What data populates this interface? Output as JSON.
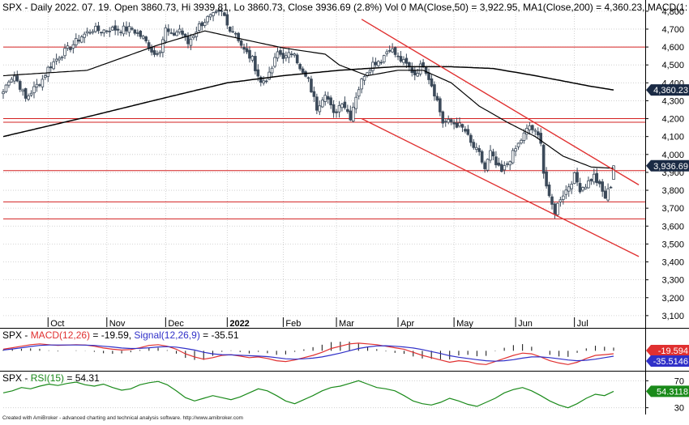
{
  "header": {
    "symbol": "SPX",
    "title": "SPX - Daily 2022. 07. 19. Open 3860.73, Hi 3939.81, Lo 3860.73, Close 3936.69 (2.8%) Vol 0 MA(Close,50) = 3,922.95, MA1(Close,200) = 4,360.23, MACD(1:"
  },
  "footer": "Created with AmiBroker - advanced charting and technical analysis software. http://www.amibroker.com",
  "colors": {
    "grid": "#c8c8c8",
    "candle": "#3c4a5a",
    "hline": "#d32020",
    "channel": "#e03030",
    "ma": "#000000",
    "macd": "#e03030",
    "signal": "#3030c8",
    "rsi": "#1a8a1a",
    "label_blue": "#1a2a44"
  },
  "chart_data": [
    {
      "type": "candlestick",
      "panel": "price",
      "title": "SPX - Daily 2022. 07. 19.",
      "ylim": [
        3050,
        4860
      ],
      "y_ticks": [
        3100,
        3200,
        3300,
        3400,
        3500,
        3600,
        3700,
        3800,
        3900,
        4000,
        4100,
        4200,
        4300,
        4400,
        4500,
        4600,
        4700,
        4800
      ],
      "y_tick_labels": [
        "3,100",
        "3,200",
        "3,300",
        "3,400",
        "3,500",
        "3,600",
        "3,700",
        "3,800",
        "3,900",
        "4,000",
        "4,100",
        "4,200",
        "4,300",
        "4,400",
        "4,500",
        "4,600",
        "4,700",
        "4,800"
      ],
      "x_labels": [
        {
          "label": "Oct",
          "bar": 16
        },
        {
          "label": "Nov",
          "bar": 37
        },
        {
          "label": "Dec",
          "bar": 58
        },
        {
          "label": "2022",
          "bar": 80
        },
        {
          "label": "Feb",
          "bar": 100
        },
        {
          "label": "Mar",
          "bar": 119
        },
        {
          "label": "Apr",
          "bar": 141
        },
        {
          "label": "May",
          "bar": 161
        },
        {
          "label": "Jun",
          "bar": 183
        },
        {
          "label": "Jul",
          "bar": 204
        }
      ],
      "bar_count": 219,
      "anchors": [
        [
          0,
          4350
        ],
        [
          2,
          4420
        ],
        [
          4,
          4440
        ],
        [
          6,
          4380
        ],
        [
          8,
          4310
        ],
        [
          10,
          4350
        ],
        [
          14,
          4420
        ],
        [
          16,
          4480
        ],
        [
          20,
          4550
        ],
        [
          24,
          4600
        ],
        [
          28,
          4660
        ],
        [
          32,
          4700
        ],
        [
          35,
          4690
        ],
        [
          38,
          4700
        ],
        [
          42,
          4700
        ],
        [
          46,
          4700
        ],
        [
          50,
          4650
        ],
        [
          54,
          4560
        ],
        [
          56,
          4590
        ],
        [
          58,
          4700
        ],
        [
          60,
          4660
        ],
        [
          63,
          4700
        ],
        [
          66,
          4620
        ],
        [
          70,
          4720
        ],
        [
          73,
          4760
        ],
        [
          76,
          4780
        ],
        [
          78,
          4790
        ],
        [
          79,
          4770
        ],
        [
          80,
          4720
        ],
        [
          83,
          4680
        ],
        [
          86,
          4580
        ],
        [
          89,
          4530
        ],
        [
          92,
          4400
        ],
        [
          95,
          4440
        ],
        [
          98,
          4570
        ],
        [
          101,
          4540
        ],
        [
          104,
          4580
        ],
        [
          106,
          4470
        ],
        [
          109,
          4410
        ],
        [
          112,
          4260
        ],
        [
          115,
          4350
        ],
        [
          118,
          4220
        ],
        [
          121,
          4300
        ],
        [
          124,
          4210
        ],
        [
          126,
          4330
        ],
        [
          129,
          4450
        ],
        [
          132,
          4510
        ],
        [
          135,
          4530
        ],
        [
          138,
          4600
        ],
        [
          141,
          4540
        ],
        [
          144,
          4500
        ],
        [
          147,
          4450
        ],
        [
          150,
          4510
        ],
        [
          153,
          4390
        ],
        [
          155,
          4300
        ],
        [
          157,
          4180
        ],
        [
          160,
          4180
        ],
        [
          163,
          4160
        ],
        [
          165,
          4130
        ],
        [
          167,
          4060
        ],
        [
          170,
          4000
        ],
        [
          172,
          3920
        ],
        [
          174,
          4010
        ],
        [
          176,
          3940
        ],
        [
          178,
          3900
        ],
        [
          180,
          3950
        ],
        [
          183,
          4030
        ],
        [
          186,
          4110
        ],
        [
          188,
          4160
        ],
        [
          190,
          4120
        ],
        [
          192,
          4080
        ],
        [
          193,
          3900
        ],
        [
          195,
          3750
        ],
        [
          197,
          3680
        ],
        [
          199,
          3760
        ],
        [
          201,
          3800
        ],
        [
          204,
          3880
        ],
        [
          206,
          3810
        ],
        [
          208,
          3830
        ],
        [
          211,
          3880
        ],
        [
          213,
          3820
        ],
        [
          215,
          3760
        ],
        [
          217,
          3830
        ],
        [
          218,
          3936.69
        ]
      ],
      "ma50_anchors": [
        [
          0,
          4440
        ],
        [
          30,
          4470
        ],
        [
          55,
          4610
        ],
        [
          72,
          4690
        ],
        [
          85,
          4645
        ],
        [
          100,
          4595
        ],
        [
          115,
          4560
        ],
        [
          120,
          4500
        ],
        [
          130,
          4440
        ],
        [
          141,
          4470
        ],
        [
          150,
          4470
        ],
        [
          160,
          4400
        ],
        [
          170,
          4270
        ],
        [
          180,
          4180
        ],
        [
          190,
          4100
        ],
        [
          200,
          3990
        ],
        [
          210,
          3930
        ],
        [
          218,
          3922.95
        ]
      ],
      "ma200_anchors": [
        [
          0,
          4100
        ],
        [
          30,
          4210
        ],
        [
          60,
          4325
        ],
        [
          80,
          4400
        ],
        [
          100,
          4440
        ],
        [
          120,
          4470
        ],
        [
          140,
          4490
        ],
        [
          160,
          4490
        ],
        [
          175,
          4480
        ],
        [
          190,
          4440
        ],
        [
          200,
          4410
        ],
        [
          210,
          4380
        ],
        [
          218,
          4360.23
        ]
      ],
      "horizontal_levels": [
        4600,
        4200,
        4180,
        3910,
        3735,
        3640
      ],
      "channel_upper": [
        [
          128,
          4755
        ],
        [
          227,
          3830
        ]
      ],
      "channel_lower": [
        [
          128,
          4200
        ],
        [
          227,
          3430
        ]
      ],
      "value_tags": [
        {
          "label": "4,360.23",
          "value": 4360.23
        },
        {
          "label": "3,936.69",
          "value": 3936.69
        }
      ]
    },
    {
      "type": "line",
      "panel": "macd",
      "title": "SPX - MACD(12,26) = -19.59, Signal(12,26,9) = -35.51",
      "legend": [
        {
          "text": "SPX - "
        },
        {
          "text": "MACD(12,26)",
          "series": "macd"
        },
        {
          "text": " = -19.59, "
        },
        {
          "text": "Signal(12,26,9)",
          "series": "signal"
        },
        {
          "text": " = -35.51"
        }
      ],
      "ylim": [
        -120,
        60
      ],
      "series": [
        {
          "name": "MACD(12,26)",
          "value_label": "-19.594",
          "values": [
            10,
            20,
            30,
            40,
            45,
            40,
            35,
            38,
            40,
            38,
            30,
            18,
            10,
            5,
            8,
            20,
            35,
            40,
            30,
            10,
            -20,
            -40,
            -55,
            -45,
            -30,
            -25,
            -35,
            -45,
            -40,
            -50,
            -65,
            -70,
            -60,
            -45,
            -30,
            -10,
            15,
            30,
            45,
            50,
            45,
            40,
            30,
            20,
            10,
            -10,
            -30,
            -45,
            -60,
            -75,
            -65,
            -70,
            -85,
            -90,
            -70,
            -50,
            -30,
            -15,
            -20,
            -40,
            -65,
            -80,
            -90,
            -75,
            -50,
            -30,
            -25,
            -19.59
          ]
        },
        {
          "name": "Signal(12,26,9)",
          "value_label": "-35.5146",
          "values": [
            5,
            12,
            20,
            28,
            35,
            38,
            38,
            38,
            38,
            37,
            35,
            30,
            25,
            18,
            15,
            16,
            20,
            25,
            27,
            24,
            15,
            5,
            -10,
            -20,
            -25,
            -27,
            -29,
            -32,
            -35,
            -38,
            -45,
            -52,
            -55,
            -52,
            -48,
            -40,
            -28,
            -15,
            0,
            15,
            25,
            32,
            33,
            30,
            25,
            18,
            8,
            -5,
            -18,
            -32,
            -42,
            -50,
            -58,
            -65,
            -68,
            -65,
            -58,
            -48,
            -40,
            -40,
            -45,
            -52,
            -60,
            -65,
            -62,
            -55,
            -45,
            -35.51
          ]
        }
      ]
    },
    {
      "type": "line",
      "panel": "rsi",
      "title": "SPX - RSI(15) = 54.31",
      "legend": [
        {
          "text": "SPX - "
        },
        {
          "text": "RSI(15)",
          "series": "rsi"
        },
        {
          "text": " = 54.31"
        }
      ],
      "ylim": [
        20,
        80
      ],
      "y_ticks": [
        30,
        70
      ],
      "series": [
        {
          "name": "RSI(15)",
          "value_label": "54.3118",
          "values": [
            52,
            55,
            60,
            58,
            62,
            65,
            63,
            66,
            68,
            64,
            62,
            65,
            60,
            56,
            58,
            64,
            67,
            69,
            64,
            55,
            45,
            40,
            44,
            48,
            45,
            42,
            46,
            52,
            58,
            55,
            48,
            40,
            36,
            42,
            48,
            55,
            60,
            62,
            66,
            70,
            65,
            60,
            58,
            55,
            48,
            40,
            36,
            34,
            38,
            44,
            40,
            35,
            32,
            38,
            44,
            52,
            57,
            60,
            55,
            48,
            40,
            34,
            30,
            36,
            44,
            50,
            48,
            54.31
          ]
        }
      ]
    }
  ]
}
